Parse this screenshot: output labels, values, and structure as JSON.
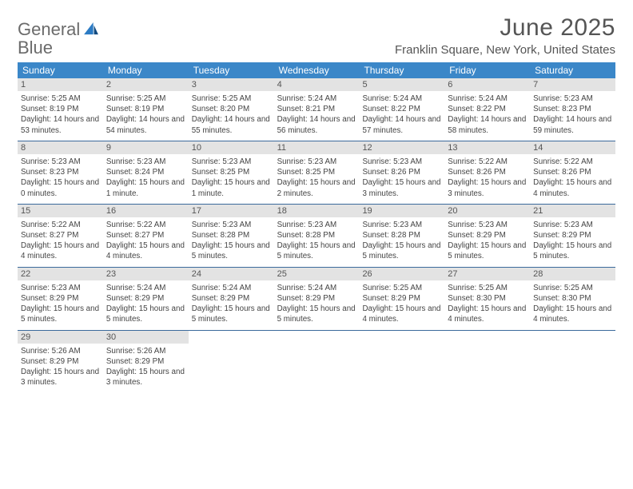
{
  "brand": {
    "word1": "General",
    "word2": "Blue"
  },
  "header": {
    "month_title": "June 2025",
    "location": "Franklin Square, New York, United States"
  },
  "colors": {
    "header_blue": "#3b87c8",
    "rule_blue": "#3b6a9c",
    "day_bar": "#e3e3e3",
    "logo_blue": "#2c7bc4"
  },
  "day_names": [
    "Sunday",
    "Monday",
    "Tuesday",
    "Wednesday",
    "Thursday",
    "Friday",
    "Saturday"
  ],
  "weeks": [
    [
      {
        "n": "1",
        "sr": "Sunrise: 5:25 AM",
        "ss": "Sunset: 8:19 PM",
        "dl": "Daylight: 14 hours and 53 minutes."
      },
      {
        "n": "2",
        "sr": "Sunrise: 5:25 AM",
        "ss": "Sunset: 8:19 PM",
        "dl": "Daylight: 14 hours and 54 minutes."
      },
      {
        "n": "3",
        "sr": "Sunrise: 5:25 AM",
        "ss": "Sunset: 8:20 PM",
        "dl": "Daylight: 14 hours and 55 minutes."
      },
      {
        "n": "4",
        "sr": "Sunrise: 5:24 AM",
        "ss": "Sunset: 8:21 PM",
        "dl": "Daylight: 14 hours and 56 minutes."
      },
      {
        "n": "5",
        "sr": "Sunrise: 5:24 AM",
        "ss": "Sunset: 8:22 PM",
        "dl": "Daylight: 14 hours and 57 minutes."
      },
      {
        "n": "6",
        "sr": "Sunrise: 5:24 AM",
        "ss": "Sunset: 8:22 PM",
        "dl": "Daylight: 14 hours and 58 minutes."
      },
      {
        "n": "7",
        "sr": "Sunrise: 5:23 AM",
        "ss": "Sunset: 8:23 PM",
        "dl": "Daylight: 14 hours and 59 minutes."
      }
    ],
    [
      {
        "n": "8",
        "sr": "Sunrise: 5:23 AM",
        "ss": "Sunset: 8:23 PM",
        "dl": "Daylight: 15 hours and 0 minutes."
      },
      {
        "n": "9",
        "sr": "Sunrise: 5:23 AM",
        "ss": "Sunset: 8:24 PM",
        "dl": "Daylight: 15 hours and 1 minute."
      },
      {
        "n": "10",
        "sr": "Sunrise: 5:23 AM",
        "ss": "Sunset: 8:25 PM",
        "dl": "Daylight: 15 hours and 1 minute."
      },
      {
        "n": "11",
        "sr": "Sunrise: 5:23 AM",
        "ss": "Sunset: 8:25 PM",
        "dl": "Daylight: 15 hours and 2 minutes."
      },
      {
        "n": "12",
        "sr": "Sunrise: 5:23 AM",
        "ss": "Sunset: 8:26 PM",
        "dl": "Daylight: 15 hours and 3 minutes."
      },
      {
        "n": "13",
        "sr": "Sunrise: 5:22 AM",
        "ss": "Sunset: 8:26 PM",
        "dl": "Daylight: 15 hours and 3 minutes."
      },
      {
        "n": "14",
        "sr": "Sunrise: 5:22 AM",
        "ss": "Sunset: 8:26 PM",
        "dl": "Daylight: 15 hours and 4 minutes."
      }
    ],
    [
      {
        "n": "15",
        "sr": "Sunrise: 5:22 AM",
        "ss": "Sunset: 8:27 PM",
        "dl": "Daylight: 15 hours and 4 minutes."
      },
      {
        "n": "16",
        "sr": "Sunrise: 5:22 AM",
        "ss": "Sunset: 8:27 PM",
        "dl": "Daylight: 15 hours and 4 minutes."
      },
      {
        "n": "17",
        "sr": "Sunrise: 5:23 AM",
        "ss": "Sunset: 8:28 PM",
        "dl": "Daylight: 15 hours and 5 minutes."
      },
      {
        "n": "18",
        "sr": "Sunrise: 5:23 AM",
        "ss": "Sunset: 8:28 PM",
        "dl": "Daylight: 15 hours and 5 minutes."
      },
      {
        "n": "19",
        "sr": "Sunrise: 5:23 AM",
        "ss": "Sunset: 8:28 PM",
        "dl": "Daylight: 15 hours and 5 minutes."
      },
      {
        "n": "20",
        "sr": "Sunrise: 5:23 AM",
        "ss": "Sunset: 8:29 PM",
        "dl": "Daylight: 15 hours and 5 minutes."
      },
      {
        "n": "21",
        "sr": "Sunrise: 5:23 AM",
        "ss": "Sunset: 8:29 PM",
        "dl": "Daylight: 15 hours and 5 minutes."
      }
    ],
    [
      {
        "n": "22",
        "sr": "Sunrise: 5:23 AM",
        "ss": "Sunset: 8:29 PM",
        "dl": "Daylight: 15 hours and 5 minutes."
      },
      {
        "n": "23",
        "sr": "Sunrise: 5:24 AM",
        "ss": "Sunset: 8:29 PM",
        "dl": "Daylight: 15 hours and 5 minutes."
      },
      {
        "n": "24",
        "sr": "Sunrise: 5:24 AM",
        "ss": "Sunset: 8:29 PM",
        "dl": "Daylight: 15 hours and 5 minutes."
      },
      {
        "n": "25",
        "sr": "Sunrise: 5:24 AM",
        "ss": "Sunset: 8:29 PM",
        "dl": "Daylight: 15 hours and 5 minutes."
      },
      {
        "n": "26",
        "sr": "Sunrise: 5:25 AM",
        "ss": "Sunset: 8:29 PM",
        "dl": "Daylight: 15 hours and 4 minutes."
      },
      {
        "n": "27",
        "sr": "Sunrise: 5:25 AM",
        "ss": "Sunset: 8:30 PM",
        "dl": "Daylight: 15 hours and 4 minutes."
      },
      {
        "n": "28",
        "sr": "Sunrise: 5:25 AM",
        "ss": "Sunset: 8:30 PM",
        "dl": "Daylight: 15 hours and 4 minutes."
      }
    ],
    [
      {
        "n": "29",
        "sr": "Sunrise: 5:26 AM",
        "ss": "Sunset: 8:29 PM",
        "dl": "Daylight: 15 hours and 3 minutes."
      },
      {
        "n": "30",
        "sr": "Sunrise: 5:26 AM",
        "ss": "Sunset: 8:29 PM",
        "dl": "Daylight: 15 hours and 3 minutes."
      },
      {
        "empty": true
      },
      {
        "empty": true
      },
      {
        "empty": true
      },
      {
        "empty": true
      },
      {
        "empty": true
      }
    ]
  ]
}
